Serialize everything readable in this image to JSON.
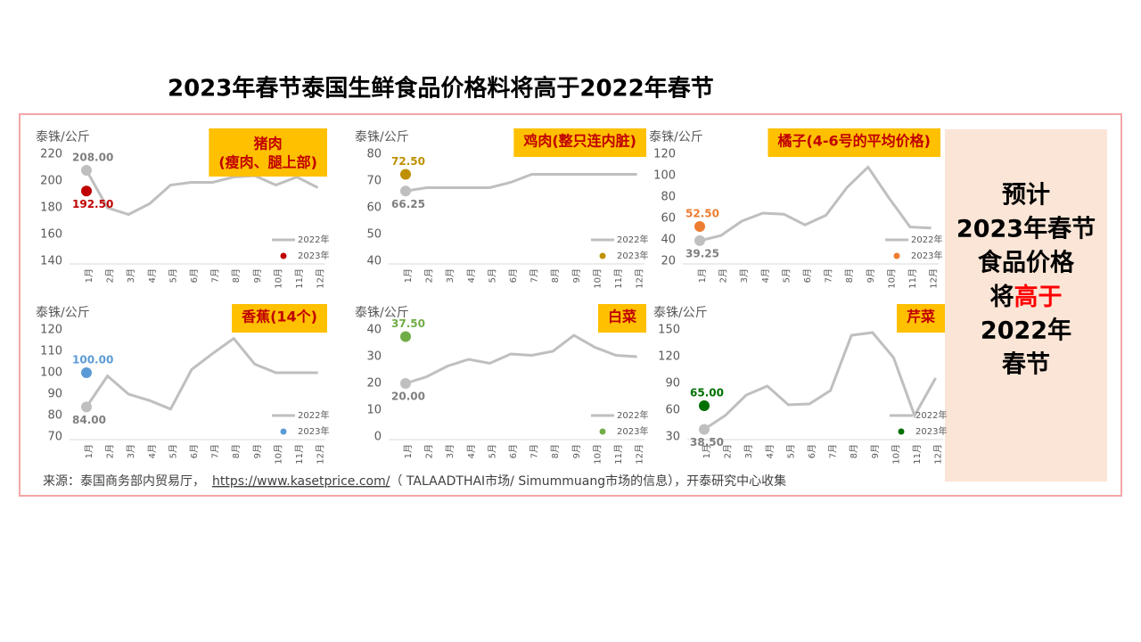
{
  "title": "2023年春节泰国生鲜食品价格料将高于2022年春节",
  "chart_data": [
    {
      "type": "line",
      "title_lines": [
        "猪肉",
        "(瘦肉、腿上部)"
      ],
      "y_label": "泰铢/公斤",
      "categories": [
        "1月",
        "2月",
        "3月",
        "4月",
        "5月",
        "6月",
        "7月",
        "8月",
        "9月",
        "10月",
        "11月",
        "12月"
      ],
      "ylim": [
        140,
        220
      ],
      "yticks": [
        140,
        160,
        180,
        200,
        220
      ],
      "series": [
        {
          "name": "2022年",
          "color": "#bfbfbf",
          "values": [
            208,
            180,
            175,
            183,
            197,
            199,
            199,
            203,
            204,
            197,
            203,
            195
          ],
          "value_labels": [
            "208.00",
            null,
            null,
            null,
            null,
            null,
            null,
            null,
            null,
            null,
            null,
            null
          ]
        },
        {
          "name": "2023年",
          "color": "#c00000",
          "values": [
            192.5,
            null,
            null,
            null,
            null,
            null,
            null,
            null,
            null,
            null,
            null,
            null
          ],
          "value_labels": [
            "192.50",
            null,
            null,
            null,
            null,
            null,
            null,
            null,
            null,
            null,
            null,
            null
          ]
        }
      ]
    },
    {
      "type": "line",
      "title_lines": [
        "鸡肉(整只连内脏)"
      ],
      "y_label": "泰铢/公斤",
      "categories": [
        "1月",
        "2月",
        "3月",
        "4月",
        "5月",
        "6月",
        "7月",
        "8月",
        "9月",
        "10月",
        "11月",
        "12月"
      ],
      "ylim": [
        40,
        80
      ],
      "yticks": [
        40,
        50,
        60,
        70,
        80
      ],
      "series": [
        {
          "name": "2022年",
          "color": "#bfbfbf",
          "values": [
            66.25,
            67.5,
            67.5,
            67.5,
            67.5,
            69.5,
            72.5,
            72.5,
            72.5,
            72.5,
            72.5,
            72.5
          ],
          "value_labels": [
            "66.25",
            null,
            null,
            null,
            null,
            null,
            null,
            null,
            null,
            null,
            null,
            null
          ]
        },
        {
          "name": "2023年",
          "color": "#bf9000",
          "values": [
            72.5,
            null,
            null,
            null,
            null,
            null,
            null,
            null,
            null,
            null,
            null,
            null
          ],
          "value_labels": [
            "72.50",
            null,
            null,
            null,
            null,
            null,
            null,
            null,
            null,
            null,
            null,
            null
          ]
        }
      ]
    },
    {
      "type": "line",
      "title_lines": [
        "橘子(4-6号的平均价格)"
      ],
      "y_label": "泰铢/公斤",
      "categories": [
        "1月",
        "2月",
        "3月",
        "4月",
        "5月",
        "6月",
        "7月",
        "8月",
        "9月",
        "10月",
        "11月",
        "12月"
      ],
      "ylim": [
        20,
        120
      ],
      "yticks": [
        20,
        40,
        60,
        80,
        100,
        120
      ],
      "series": [
        {
          "name": "2022年",
          "color": "#bfbfbf",
          "values": [
            39.25,
            44,
            57.5,
            65,
            64,
            54,
            63,
            89,
            108,
            79,
            52,
            51
          ],
          "value_labels": [
            "39.25",
            null,
            null,
            null,
            null,
            null,
            null,
            null,
            null,
            null,
            null,
            null
          ]
        },
        {
          "name": "2023年",
          "color": "#ed7d31",
          "values": [
            52.5,
            null,
            null,
            null,
            null,
            null,
            null,
            null,
            null,
            null,
            null,
            null
          ],
          "value_labels": [
            "52.50",
            null,
            null,
            null,
            null,
            null,
            null,
            null,
            null,
            null,
            null,
            null
          ]
        }
      ]
    },
    {
      "type": "line",
      "title_lines": [
        "香蕉(14个)"
      ],
      "y_label": "泰铢/公斤",
      "categories": [
        "1月",
        "2月",
        "3月",
        "4月",
        "5月",
        "6月",
        "7月",
        "8月",
        "9月",
        "10月",
        "11月",
        "12月"
      ],
      "ylim": [
        70,
        120
      ],
      "yticks": [
        70,
        80,
        90,
        100,
        110,
        120
      ],
      "series": [
        {
          "name": "2022年",
          "color": "#bfbfbf",
          "values": [
            84,
            98.5,
            90,
            87,
            83,
            101.5,
            109,
            116,
            104,
            100,
            100,
            100
          ],
          "value_labels": [
            "84.00",
            null,
            null,
            null,
            null,
            null,
            null,
            null,
            null,
            null,
            null,
            null
          ]
        },
        {
          "name": "2023年",
          "color": "#5b9bd5",
          "values": [
            100,
            null,
            null,
            null,
            null,
            null,
            null,
            null,
            null,
            null,
            null,
            null
          ],
          "value_labels": [
            "100.00",
            null,
            null,
            null,
            null,
            null,
            null,
            null,
            null,
            null,
            null,
            null
          ]
        }
      ]
    },
    {
      "type": "line",
      "title_lines": [
        "白菜"
      ],
      "y_label": "泰铢/公斤",
      "categories": [
        "1月",
        "2月",
        "3月",
        "4月",
        "5月",
        "6月",
        "7月",
        "8月",
        "9月",
        "10月",
        "11月",
        "12月"
      ],
      "ylim": [
        0,
        40
      ],
      "yticks": [
        0,
        10,
        20,
        30,
        40
      ],
      "series": [
        {
          "name": "2022年",
          "color": "#bfbfbf",
          "values": [
            20,
            22.5,
            26.5,
            29,
            27.5,
            31,
            30.5,
            32,
            38,
            33.5,
            30.5,
            30
          ],
          "value_labels": [
            "20.00",
            null,
            null,
            null,
            null,
            null,
            null,
            null,
            null,
            null,
            null,
            null
          ]
        },
        {
          "name": "2023年",
          "color": "#70ad47",
          "values": [
            37.5,
            null,
            null,
            null,
            null,
            null,
            null,
            null,
            null,
            null,
            null,
            null
          ],
          "value_labels": [
            "37.50",
            null,
            null,
            null,
            null,
            null,
            null,
            null,
            null,
            null,
            null,
            null
          ]
        }
      ]
    },
    {
      "type": "line",
      "title_lines": [
        "芹菜"
      ],
      "y_label": "泰铢/公斤",
      "categories": [
        "1月",
        "2月",
        "3月",
        "4月",
        "5月",
        "6月",
        "7月",
        "8月",
        "9月",
        "10月",
        "11月",
        "12月"
      ],
      "ylim": [
        30,
        150
      ],
      "yticks": [
        30,
        60,
        90,
        120,
        150
      ],
      "series": [
        {
          "name": "2022年",
          "color": "#bfbfbf",
          "values": [
            38.5,
            54,
            77,
            87,
            66,
            67,
            82,
            144,
            147,
            119,
            54,
            96
          ],
          "value_labels": [
            "38.50",
            null,
            null,
            null,
            null,
            null,
            null,
            null,
            null,
            null,
            null,
            null
          ]
        },
        {
          "name": "2023年",
          "color": "#007000",
          "values": [
            65,
            null,
            null,
            null,
            null,
            null,
            null,
            null,
            null,
            null,
            null,
            null
          ],
          "value_labels": [
            "65.00",
            null,
            null,
            null,
            null,
            null,
            null,
            null,
            null,
            null,
            null,
            null
          ]
        }
      ]
    }
  ],
  "source": {
    "prefix": "来源：泰国商务部内贸易厅，",
    "link": "https://www.kasetprice.com/",
    "suffix": "（ TALAADTHAI市场/ Simummuang市场的信息），开泰研究中心收集"
  },
  "summary": {
    "lines_before": [
      "预计",
      "2023年春节",
      "食品价格"
    ],
    "emph_lead": "将",
    "emph": "高于",
    "lines_after": [
      "2022年",
      "春节"
    ]
  }
}
